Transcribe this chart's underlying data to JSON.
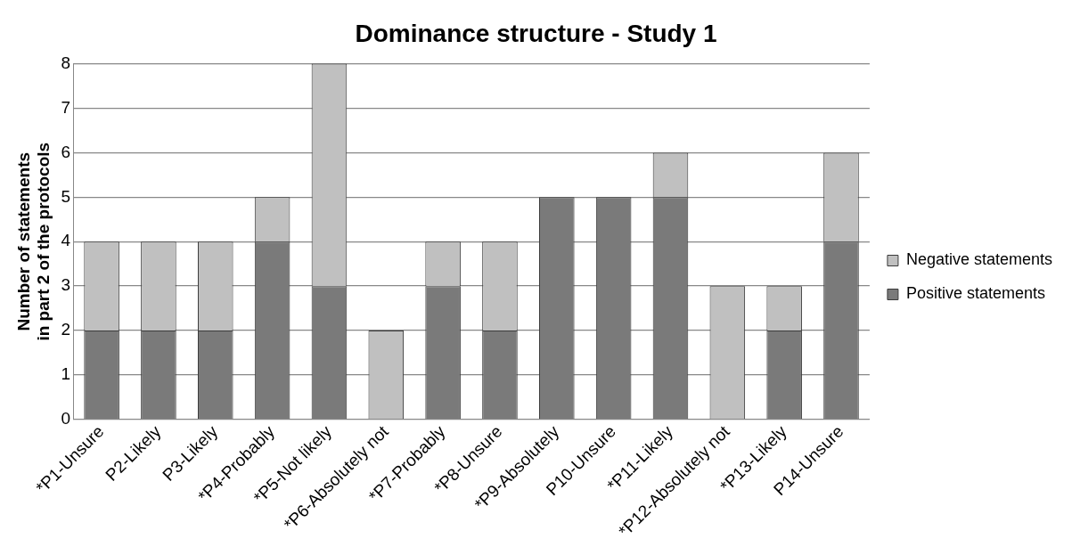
{
  "chart_data": {
    "type": "bar",
    "title": "Dominance structure - Study 1",
    "ylabel": "Number of statements\nin part 2 of the protocols",
    "categories": [
      "*P1-Unsure",
      "P2-Likely",
      "P3-Likely",
      "*P4-Probably",
      "*P5-Not likely",
      "*P6-Absolutely not",
      "*P7-Probably",
      "*P8-Unsure",
      "*P9-Absolutely",
      "P10-Unsure",
      "*P11-Likely",
      "*P12-Absolutely not",
      "*P13-Likely",
      "P14-Unsure"
    ],
    "stacked": true,
    "series": [
      {
        "name": "Positive statements",
        "color": "#7a7a7a",
        "values": [
          2,
          2,
          2,
          4,
          3,
          0,
          3,
          2,
          5,
          5,
          5,
          0,
          2,
          4
        ]
      },
      {
        "name": "Negative statements",
        "color": "#c0c0c0",
        "values": [
          2,
          2,
          2,
          1,
          5,
          2,
          1,
          2,
          0,
          0,
          1,
          3,
          1,
          2
        ]
      }
    ],
    "ylim": [
      0,
      8
    ],
    "yticks": [
      0,
      1,
      2,
      3,
      4,
      5,
      6,
      7,
      8
    ],
    "grid": "y",
    "legend": "right"
  }
}
